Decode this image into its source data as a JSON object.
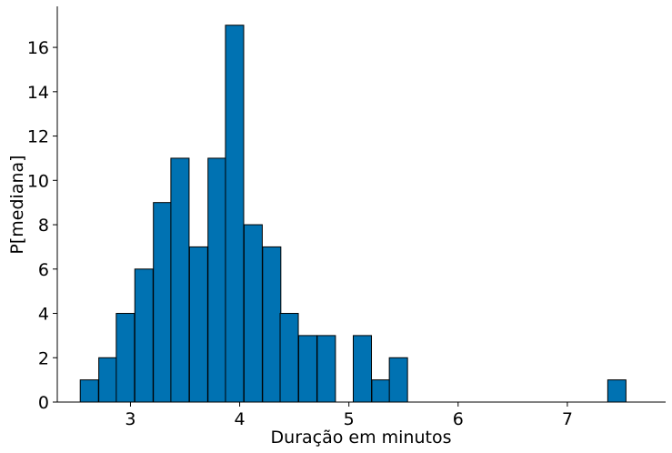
{
  "chart_data": {
    "type": "bar",
    "title": "",
    "xlabel": "Duração em minutos",
    "ylabel": "P[mediana]",
    "xlim": [
      2.33,
      7.9
    ],
    "ylim": [
      0,
      17.85
    ],
    "bin_width": 0.1667,
    "xticks": [
      3,
      4,
      5,
      6,
      7
    ],
    "yticks": [
      0,
      2,
      4,
      6,
      8,
      10,
      12,
      14,
      16
    ],
    "grid": false,
    "bar_color": "#0072B2",
    "edge_color": "#000000",
    "bins": [
      {
        "x0": 2.54,
        "value": 1
      },
      {
        "x0": 2.71,
        "value": 2
      },
      {
        "x0": 2.87,
        "value": 4
      },
      {
        "x0": 3.04,
        "value": 6
      },
      {
        "x0": 3.21,
        "value": 9
      },
      {
        "x0": 3.37,
        "value": 11
      },
      {
        "x0": 3.54,
        "value": 7
      },
      {
        "x0": 3.71,
        "value": 11
      },
      {
        "x0": 3.87,
        "value": 17
      },
      {
        "x0": 4.04,
        "value": 8
      },
      {
        "x0": 4.21,
        "value": 7
      },
      {
        "x0": 4.37,
        "value": 4
      },
      {
        "x0": 4.54,
        "value": 3
      },
      {
        "x0": 4.71,
        "value": 3
      },
      {
        "x0": 5.04,
        "value": 3
      },
      {
        "x0": 5.21,
        "value": 1
      },
      {
        "x0": 5.37,
        "value": 2
      },
      {
        "x0": 7.37,
        "value": 1
      }
    ]
  }
}
